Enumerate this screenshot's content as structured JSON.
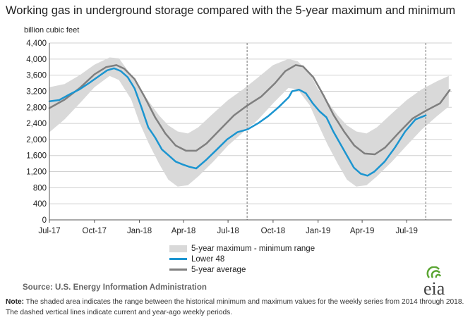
{
  "title": "Working gas in underground  storage compared with the 5-year maximum and minimum",
  "legend": {
    "range": "5-year maximum - minimum range",
    "lower48": "Lower 48",
    "avg": "5-year average"
  },
  "source": "Source:  U.S. Energy Information Administration",
  "note": {
    "label": "Note:",
    "text": " The shaded area indicates the range between the historical minimum and maximum values for the weekly series from 2014 through 2018. The dashed vertical lines indicate current and year-ago weekly periods."
  },
  "logo_text": "eia",
  "colors": {
    "lower48": "#1c95d0",
    "avg": "#7f7f7f",
    "range": "#d9d9d9",
    "grid": "#d0d0d0",
    "logo_green": "#5aa532"
  },
  "chart_data": {
    "type": "line",
    "ylabel": "billion cubic feet",
    "ylim": [
      0,
      4400
    ],
    "yticks": [
      0,
      400,
      800,
      1200,
      1600,
      2000,
      2400,
      2800,
      3200,
      3600,
      4000,
      4400
    ],
    "ytick_labels": [
      "0",
      "400",
      "800",
      "1,200",
      "1,600",
      "2,000",
      "2,400",
      "2,800",
      "3,200",
      "3,600",
      "4,000",
      "4,400"
    ],
    "x_domain": [
      "2017-07-01",
      "2019-10-01"
    ],
    "xticks": [
      "2017-07-01",
      "2017-10-01",
      "2018-01-01",
      "2018-04-01",
      "2018-07-01",
      "2018-10-01",
      "2019-01-01",
      "2019-04-01",
      "2019-07-01"
    ],
    "xtick_labels": [
      "Jul-17",
      "Oct-17",
      "Jan-18",
      "Apr-18",
      "Jul-18",
      "Oct-18",
      "Jan-19",
      "Apr-19",
      "Jul-19"
    ],
    "grid": true,
    "vlines": [
      "2018-08-09",
      "2019-08-09"
    ],
    "series": [
      {
        "name": "5-year maximum - minimum range",
        "kind": "band",
        "x": [
          "2017-07-01",
          "2017-08-01",
          "2017-09-01",
          "2017-10-01",
          "2017-11-01",
          "2017-11-20",
          "2017-12-15",
          "2018-01-01",
          "2018-01-20",
          "2018-02-10",
          "2018-03-01",
          "2018-03-20",
          "2018-04-10",
          "2018-05-01",
          "2018-06-01",
          "2018-07-01",
          "2018-08-01",
          "2018-09-01",
          "2018-10-01",
          "2018-11-01",
          "2018-11-20",
          "2018-12-15",
          "2019-01-01",
          "2019-01-20",
          "2019-02-10",
          "2019-03-01",
          "2019-03-20",
          "2019-04-10",
          "2019-05-01",
          "2019-06-01",
          "2019-07-01",
          "2019-08-01",
          "2019-09-01",
          "2019-09-25"
        ],
        "upper": [
          3300,
          3380,
          3600,
          3860,
          4040,
          4020,
          3600,
          3250,
          2950,
          2600,
          2350,
          2200,
          2150,
          2300,
          2650,
          2980,
          3250,
          3550,
          3850,
          4000,
          3950,
          3650,
          3250,
          2950,
          2600,
          2350,
          2200,
          2150,
          2300,
          2650,
          2980,
          3250,
          3450,
          3580
        ],
        "lower": [
          2180,
          2500,
          2900,
          3300,
          3580,
          3480,
          3000,
          2420,
          1900,
          1400,
          1000,
          830,
          860,
          1080,
          1450,
          1850,
          2180,
          2500,
          2900,
          3280,
          3250,
          2850,
          2380,
          1880,
          1400,
          1000,
          830,
          860,
          1080,
          1450,
          1850,
          2250,
          2580,
          2820
        ]
      },
      {
        "name": "Lower 48",
        "kind": "line",
        "x": [
          "2017-07-01",
          "2017-07-21",
          "2017-08-11",
          "2017-09-01",
          "2017-09-22",
          "2017-10-13",
          "2017-10-27",
          "2017-11-10",
          "2017-11-24",
          "2017-12-08",
          "2017-12-22",
          "2018-01-05",
          "2018-01-19",
          "2018-02-02",
          "2018-02-16",
          "2018-03-02",
          "2018-03-16",
          "2018-03-30",
          "2018-04-13",
          "2018-04-27",
          "2018-05-18",
          "2018-06-08",
          "2018-06-29",
          "2018-07-20",
          "2018-08-10",
          "2018-08-31",
          "2018-09-21",
          "2018-10-12",
          "2018-11-02",
          "2018-11-09",
          "2018-11-23",
          "2018-12-07",
          "2018-12-21",
          "2019-01-04",
          "2019-01-18",
          "2019-02-01",
          "2019-02-15",
          "2019-03-01",
          "2019-03-15",
          "2019-03-29",
          "2019-04-12",
          "2019-04-26",
          "2019-05-17",
          "2019-06-07",
          "2019-06-28",
          "2019-07-19",
          "2019-08-09"
        ],
        "values": [
          2950,
          2980,
          3120,
          3250,
          3420,
          3600,
          3720,
          3770,
          3700,
          3550,
          3270,
          2800,
          2300,
          2050,
          1750,
          1600,
          1450,
          1380,
          1320,
          1280,
          1500,
          1750,
          2000,
          2180,
          2250,
          2400,
          2580,
          2800,
          3050,
          3200,
          3240,
          3150,
          2900,
          2700,
          2550,
          2200,
          1900,
          1600,
          1300,
          1150,
          1100,
          1200,
          1450,
          1800,
          2200,
          2500,
          2600
        ]
      },
      {
        "name": "5-year average",
        "kind": "line",
        "x": [
          "2017-07-01",
          "2017-08-01",
          "2017-09-01",
          "2017-10-01",
          "2017-10-25",
          "2017-11-15",
          "2017-12-01",
          "2017-12-22",
          "2018-01-12",
          "2018-02-02",
          "2018-02-23",
          "2018-03-16",
          "2018-04-06",
          "2018-04-27",
          "2018-05-18",
          "2018-06-15",
          "2018-07-13",
          "2018-08-10",
          "2018-09-07",
          "2018-10-05",
          "2018-10-26",
          "2018-11-16",
          "2018-12-01",
          "2018-12-22",
          "2019-01-12",
          "2019-02-02",
          "2019-02-23",
          "2019-03-16",
          "2019-04-06",
          "2019-04-27",
          "2019-05-18",
          "2019-06-15",
          "2019-07-13",
          "2019-08-10",
          "2019-09-07",
          "2019-09-27"
        ],
        "values": [
          2780,
          2990,
          3280,
          3620,
          3800,
          3850,
          3760,
          3500,
          3050,
          2550,
          2150,
          1850,
          1720,
          1720,
          1900,
          2250,
          2600,
          2850,
          3070,
          3400,
          3700,
          3850,
          3820,
          3550,
          3100,
          2600,
          2200,
          1850,
          1650,
          1630,
          1800,
          2170,
          2520,
          2720,
          2900,
          3230
        ]
      }
    ]
  }
}
